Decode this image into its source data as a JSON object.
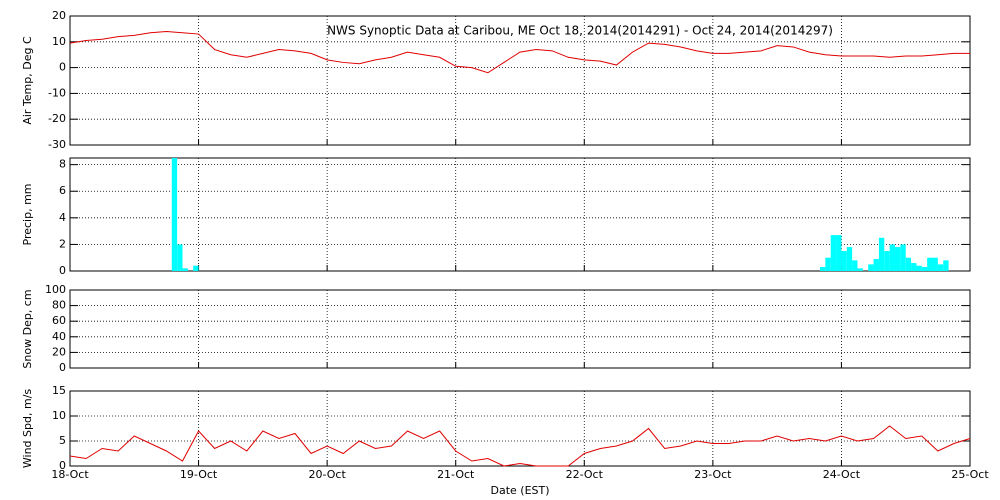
{
  "chart_data": [
    {
      "type": "line",
      "title": "NWS Synoptic Data at Caribou, ME   Oct 18, 2014(2014291) - Oct 24, 2014(2014297)",
      "ylabel": "Air Temp, Deg C",
      "x": [
        0,
        3,
        6,
        9,
        12,
        15,
        18,
        21,
        24,
        27,
        30,
        33,
        36,
        39,
        42,
        45,
        48,
        51,
        54,
        57,
        60,
        63,
        66,
        69,
        72,
        75,
        78,
        81,
        84,
        87,
        90,
        93,
        96,
        99,
        102,
        105,
        108,
        111,
        114,
        117,
        120,
        123,
        126,
        129,
        132,
        135,
        138,
        141,
        144,
        147,
        150,
        153,
        156,
        159,
        162,
        165,
        168
      ],
      "series": [
        {
          "color": "#e00000",
          "values": [
            9.5,
            10.5,
            11,
            12,
            12.5,
            13.5,
            14,
            13.5,
            13,
            7,
            5,
            4,
            5.5,
            7,
            6.5,
            5.5,
            3,
            2,
            1.5,
            3,
            4,
            6,
            5,
            4,
            0.5,
            0,
            -2,
            2,
            6,
            7,
            6.5,
            4,
            3,
            2.5,
            1,
            6,
            9.5,
            9,
            8,
            6.5,
            5.5,
            5.5,
            6,
            6.5,
            8.5,
            8,
            6,
            5,
            4.5,
            4.5,
            4.5,
            4,
            4.5,
            4.5,
            5,
            5.5,
            5.5
          ]
        }
      ],
      "xlim": [
        0,
        168
      ],
      "ylim": [
        -30,
        20
      ],
      "yticks": [
        -30,
        -20,
        -10,
        0,
        10,
        20
      ],
      "grid": true
    },
    {
      "type": "bar",
      "ylabel": "Precip, mm",
      "x": [
        19.5,
        20.5,
        21.5,
        23.5,
        140.5,
        141.5,
        142.5,
        143.5,
        144.5,
        145.5,
        146.5,
        147.5,
        149.5,
        150.5,
        151.5,
        152.5,
        153.5,
        154.5,
        155.5,
        156.5,
        157.5,
        158.5,
        159.5,
        160.5,
        161.5,
        162.5,
        163.5
      ],
      "series": [
        {
          "color": "#00ffff",
          "values": [
            8.5,
            2,
            0.2,
            0.4,
            0.3,
            1,
            2.7,
            2.7,
            1.5,
            1.8,
            0.8,
            0.2,
            0.5,
            0.9,
            2.5,
            1.5,
            2,
            1.8,
            2,
            1,
            0.6,
            0.4,
            0.3,
            1,
            1,
            0.5,
            0.8
          ]
        }
      ],
      "xlim": [
        0,
        168
      ],
      "ylim": [
        0,
        8.5
      ],
      "yticks": [
        0,
        2,
        4,
        6,
        8
      ],
      "grid": true
    },
    {
      "type": "line",
      "ylabel": "Snow Dep, cm",
      "xlim": [
        0,
        168
      ],
      "ylim": [
        0,
        100
      ],
      "yticks": [
        0,
        20,
        40,
        60,
        80,
        100
      ],
      "grid": true
    },
    {
      "type": "line",
      "ylabel": "Wind Spd, m/s",
      "xlabel": "Date (EST)",
      "x": [
        0,
        3,
        6,
        9,
        12,
        15,
        18,
        21,
        24,
        27,
        30,
        33,
        36,
        39,
        42,
        45,
        48,
        51,
        54,
        57,
        60,
        63,
        66,
        69,
        72,
        75,
        78,
        81,
        84,
        87,
        90,
        93,
        96,
        99,
        102,
        105,
        108,
        111,
        114,
        117,
        120,
        123,
        126,
        129,
        132,
        135,
        138,
        141,
        144,
        147,
        150,
        153,
        156,
        159,
        162,
        165,
        168
      ],
      "series": [
        {
          "color": "#e00000",
          "values": [
            2,
            1.5,
            3.5,
            3,
            6,
            4.5,
            3,
            1,
            7,
            3.5,
            5,
            3,
            7,
            5.5,
            6.5,
            2.5,
            4,
            2.5,
            5,
            3.5,
            4,
            7,
            5.5,
            7,
            3,
            1,
            1.5,
            0,
            0.5,
            0,
            0,
            0,
            2.5,
            3.5,
            4,
            5,
            7.5,
            3.5,
            4,
            5,
            4.5,
            4.5,
            5,
            5,
            6,
            5,
            5.5,
            5,
            6,
            5,
            5.5,
            8,
            5.5,
            6,
            3,
            4.5,
            5.5
          ]
        }
      ],
      "xlim": [
        0,
        168
      ],
      "ylim": [
        0,
        15
      ],
      "yticks": [
        0,
        5,
        10,
        15
      ],
      "grid": true,
      "xticks": [
        {
          "value": 0,
          "label": "18-Oct"
        },
        {
          "value": 24,
          "label": "19-Oct"
        },
        {
          "value": 48,
          "label": "20-Oct"
        },
        {
          "value": 72,
          "label": "21-Oct"
        },
        {
          "value": 96,
          "label": "22-Oct"
        },
        {
          "value": 120,
          "label": "23-Oct"
        },
        {
          "value": 144,
          "label": "24-Oct"
        },
        {
          "value": 168,
          "label": "25-Oct"
        }
      ]
    }
  ]
}
